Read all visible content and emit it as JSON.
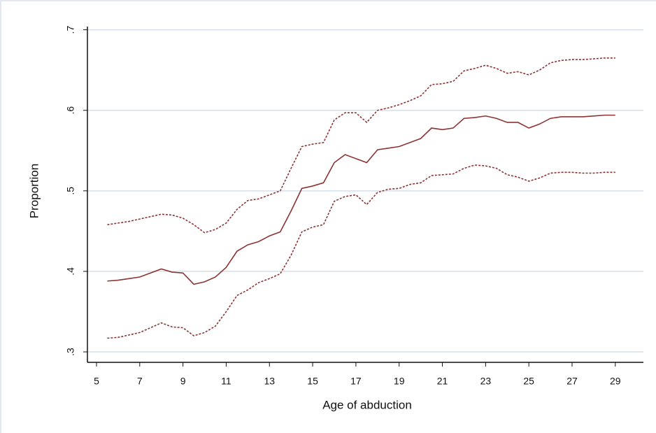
{
  "chart_data": {
    "type": "line",
    "x_label": "Age of abduction",
    "y_label": "Proportion",
    "x": [
      5.5,
      6,
      6.5,
      7,
      7.5,
      8,
      8.5,
      9,
      9.5,
      10,
      10.5,
      11,
      11.5,
      12,
      12.5,
      13,
      13.5,
      14,
      14.5,
      15,
      15.5,
      16,
      16.5,
      17,
      17.5,
      18,
      18.5,
      19,
      19.5,
      20,
      20.5,
      21,
      21.5,
      22,
      22.5,
      23,
      23.5,
      24,
      24.5,
      25,
      25.5,
      26,
      26.5,
      27,
      27.5,
      28,
      28.5,
      29
    ],
    "series": [
      {
        "color": "#8c3434",
        "dashed": false,
        "values": [
          0.388,
          0.389,
          0.391,
          0.393,
          0.398,
          0.403,
          0.399,
          0.398,
          0.384,
          0.387,
          0.393,
          0.405,
          0.425,
          0.433,
          0.437,
          0.444,
          0.449,
          0.475,
          0.503,
          0.506,
          0.51,
          0.535,
          0.545,
          0.54,
          0.535,
          0.551,
          0.553,
          0.555,
          0.56,
          0.565,
          0.578,
          0.576,
          0.578,
          0.59,
          0.591,
          0.593,
          0.59,
          0.585,
          0.585,
          0.578,
          0.583,
          0.59,
          0.592,
          0.592,
          0.592,
          0.593,
          0.594,
          0.594
        ]
      },
      {
        "color": "#8c3434",
        "dashed": true,
        "values": [
          0.458,
          0.46,
          0.462,
          0.465,
          0.468,
          0.471,
          0.47,
          0.466,
          0.458,
          0.448,
          0.452,
          0.46,
          0.477,
          0.488,
          0.49,
          0.495,
          0.5,
          0.528,
          0.555,
          0.558,
          0.56,
          0.588,
          0.597,
          0.597,
          0.585,
          0.6,
          0.603,
          0.607,
          0.612,
          0.618,
          0.632,
          0.633,
          0.636,
          0.649,
          0.652,
          0.656,
          0.652,
          0.646,
          0.648,
          0.644,
          0.65,
          0.659,
          0.662,
          0.663,
          0.663,
          0.664,
          0.665,
          0.665
        ]
      },
      {
        "color": "#8c3434",
        "dashed": true,
        "values": [
          0.317,
          0.318,
          0.321,
          0.324,
          0.33,
          0.336,
          0.331,
          0.33,
          0.32,
          0.324,
          0.332,
          0.35,
          0.37,
          0.377,
          0.386,
          0.391,
          0.397,
          0.42,
          0.449,
          0.455,
          0.458,
          0.487,
          0.493,
          0.495,
          0.483,
          0.498,
          0.502,
          0.503,
          0.508,
          0.51,
          0.519,
          0.52,
          0.521,
          0.528,
          0.532,
          0.531,
          0.528,
          0.52,
          0.517,
          0.512,
          0.516,
          0.522,
          0.523,
          0.523,
          0.522,
          0.522,
          0.523,
          0.523
        ]
      }
    ],
    "xlim": [
      4.58,
      30.3
    ],
    "xticks": [
      5,
      7,
      9,
      11,
      13,
      15,
      17,
      19,
      21,
      23,
      25,
      27,
      29
    ],
    "ylim": [
      0.287,
      0.704
    ],
    "yticks": [
      {
        "value": 0.3,
        "label": ".3"
      },
      {
        "value": 0.4,
        "label": ".4"
      },
      {
        "value": 0.5,
        "label": ".5"
      },
      {
        "value": 0.6,
        "label": ".6"
      },
      {
        "value": 0.7,
        "label": ".7"
      }
    ],
    "grid": true
  }
}
